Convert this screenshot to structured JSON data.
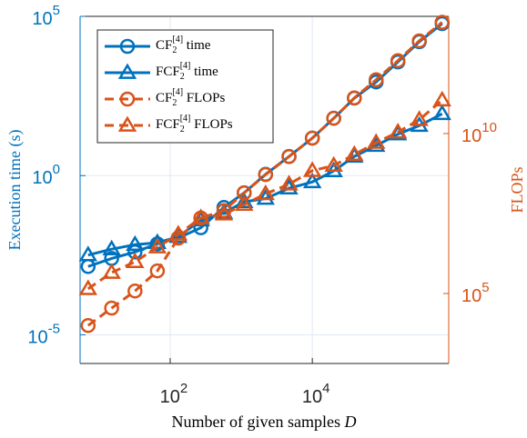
{
  "chart_data": {
    "type": "line",
    "x_label": "Number of given samples ",
    "x_label_var": "D",
    "y_label": "Execution time (s)",
    "y2_label": "FLOPs",
    "x": [
      7,
      15,
      32,
      66,
      130,
      270,
      570,
      1100,
      2200,
      4700,
      10000,
      20000,
      39000,
      79000,
      160000,
      320000,
      670000
    ],
    "xlim": [
      5.4,
      830000
    ],
    "ylim": [
      1.26e-06,
      100000
    ],
    "y2lim": [
      650,
      46000000000000
    ],
    "log_x": true,
    "log_y": true,
    "grid": true,
    "legend": "upper left",
    "xticks": [
      {
        "value": 100,
        "label": "10",
        "exponent": "2"
      },
      {
        "value": 10000,
        "label": "10",
        "exponent": "4"
      }
    ],
    "yticks": [
      {
        "value": 1e-05,
        "label": "10",
        "exponent": "-5"
      },
      {
        "value": 1,
        "label": "10",
        "exponent": "0"
      },
      {
        "value": 100000,
        "label": "10",
        "exponent": "5"
      }
    ],
    "y2ticks": [
      {
        "value": 100000,
        "label": "10",
        "exponent": "5"
      },
      {
        "value": 10000000000,
        "label": "10",
        "exponent": "10"
      }
    ],
    "y_color": "#0072BD",
    "y2_color": "#D95319",
    "series": [
      {
        "name": "CF",
        "name_sub": "2",
        "name_sup": "[4]",
        "name_suffix": " time",
        "color": "#0072BD",
        "marker": "o",
        "linestyle": "solid",
        "axis": "y",
        "values": [
          0.0014,
          0.0025,
          0.004,
          0.0072,
          0.011,
          0.023,
          0.1,
          0.29,
          1.1,
          4,
          15,
          63,
          270,
          870,
          3700,
          16000,
          59000
        ]
      },
      {
        "name": "FCF",
        "name_sub": "2",
        "name_sup": "[4]",
        "name_suffix": " time",
        "color": "#0072BD",
        "marker": "^",
        "linestyle": "solid",
        "axis": "y",
        "values": [
          0.0032,
          0.0049,
          0.0068,
          0.0078,
          0.012,
          0.04,
          0.068,
          0.15,
          0.19,
          0.4,
          0.63,
          1.4,
          4,
          8.7,
          20,
          37,
          87
        ]
      },
      {
        "name": "CF",
        "name_sub": "2",
        "name_sup": "[4]",
        "name_suffix": " FLOPs",
        "color": "#D95319",
        "marker": "o",
        "linestyle": "dashed",
        "axis": "y2",
        "values": [
          10000,
          35000,
          120000,
          510000,
          5400000,
          23000000,
          39000000,
          140000000,
          520000000,
          1900000000,
          7200000000,
          30000000000,
          130000000000,
          480000000000,
          1900000000000,
          7900000000000,
          30000000000000
        ]
      },
      {
        "name": "FCF",
        "name_sub": "2",
        "name_sup": "[4]",
        "name_suffix": " FLOPs",
        "color": "#D95319",
        "marker": "^",
        "linestyle": "dashed",
        "axis": "y2",
        "values": [
          140000,
          450000,
          980000,
          2800000,
          7100000,
          23000000,
          30000000,
          60000000,
          130000000,
          260000000,
          690000000,
          1000000000,
          2200000000,
          5200000000,
          11000000000,
          27000000000,
          110000000000
        ]
      }
    ]
  }
}
